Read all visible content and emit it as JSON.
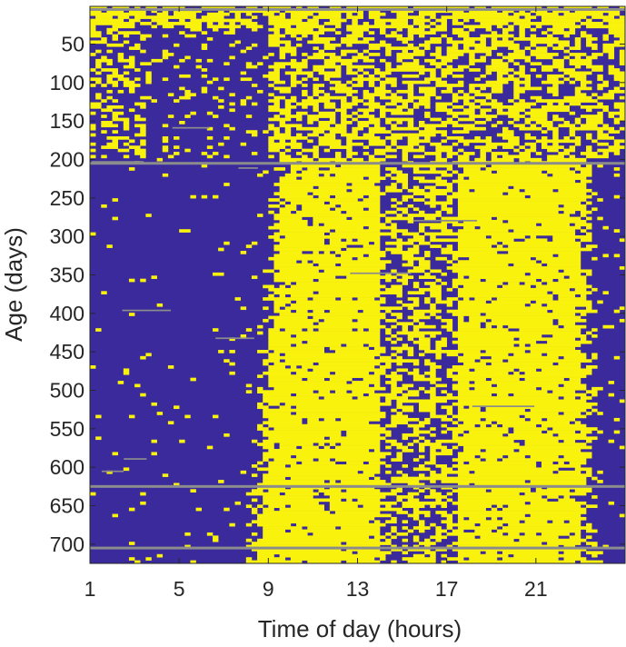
{
  "chart_data": {
    "type": "heatmap",
    "title": "",
    "xlabel": "Time of day (hours)",
    "ylabel": "Age (days)",
    "x_ticks": [
      1,
      5,
      9,
      13,
      17,
      21
    ],
    "x_tick_labels": [
      "1",
      "5",
      "9",
      "13",
      "17",
      "21"
    ],
    "y_ticks": [
      50,
      100,
      150,
      200,
      250,
      300,
      350,
      400,
      450,
      500,
      550,
      600,
      650,
      700
    ],
    "y_tick_labels": [
      "50",
      "100",
      "150",
      "200",
      "250",
      "300",
      "350",
      "400",
      "450",
      "500",
      "550",
      "600",
      "650",
      "700"
    ],
    "xlim": [
      1,
      25
    ],
    "ylim": [
      1,
      725
    ],
    "y_reversed": true,
    "grid": false,
    "legend": "none",
    "cell_values": "binary state per (age day, hour): 1 = active (yellow), 0 = inactive (blue), gray = missing",
    "colors": {
      "inactive": "#3b2a9c",
      "active": "#f9f20c",
      "missing": "#8c8c8c",
      "transition": "#2db6c8"
    },
    "activity_bands": [
      {
        "age_range": [
          1,
          200
        ],
        "active_hours": [
          [
            1,
            25
          ]
        ],
        "density": "mixed/noisy"
      },
      {
        "age_range": [
          200,
          725
        ],
        "active_hours": [
          [
            9.5,
            14
          ],
          [
            18,
            23.5
          ]
        ],
        "density": "mostly active with gap near 17"
      }
    ],
    "missing_rows": [
      5,
      205,
      625,
      705
    ]
  }
}
